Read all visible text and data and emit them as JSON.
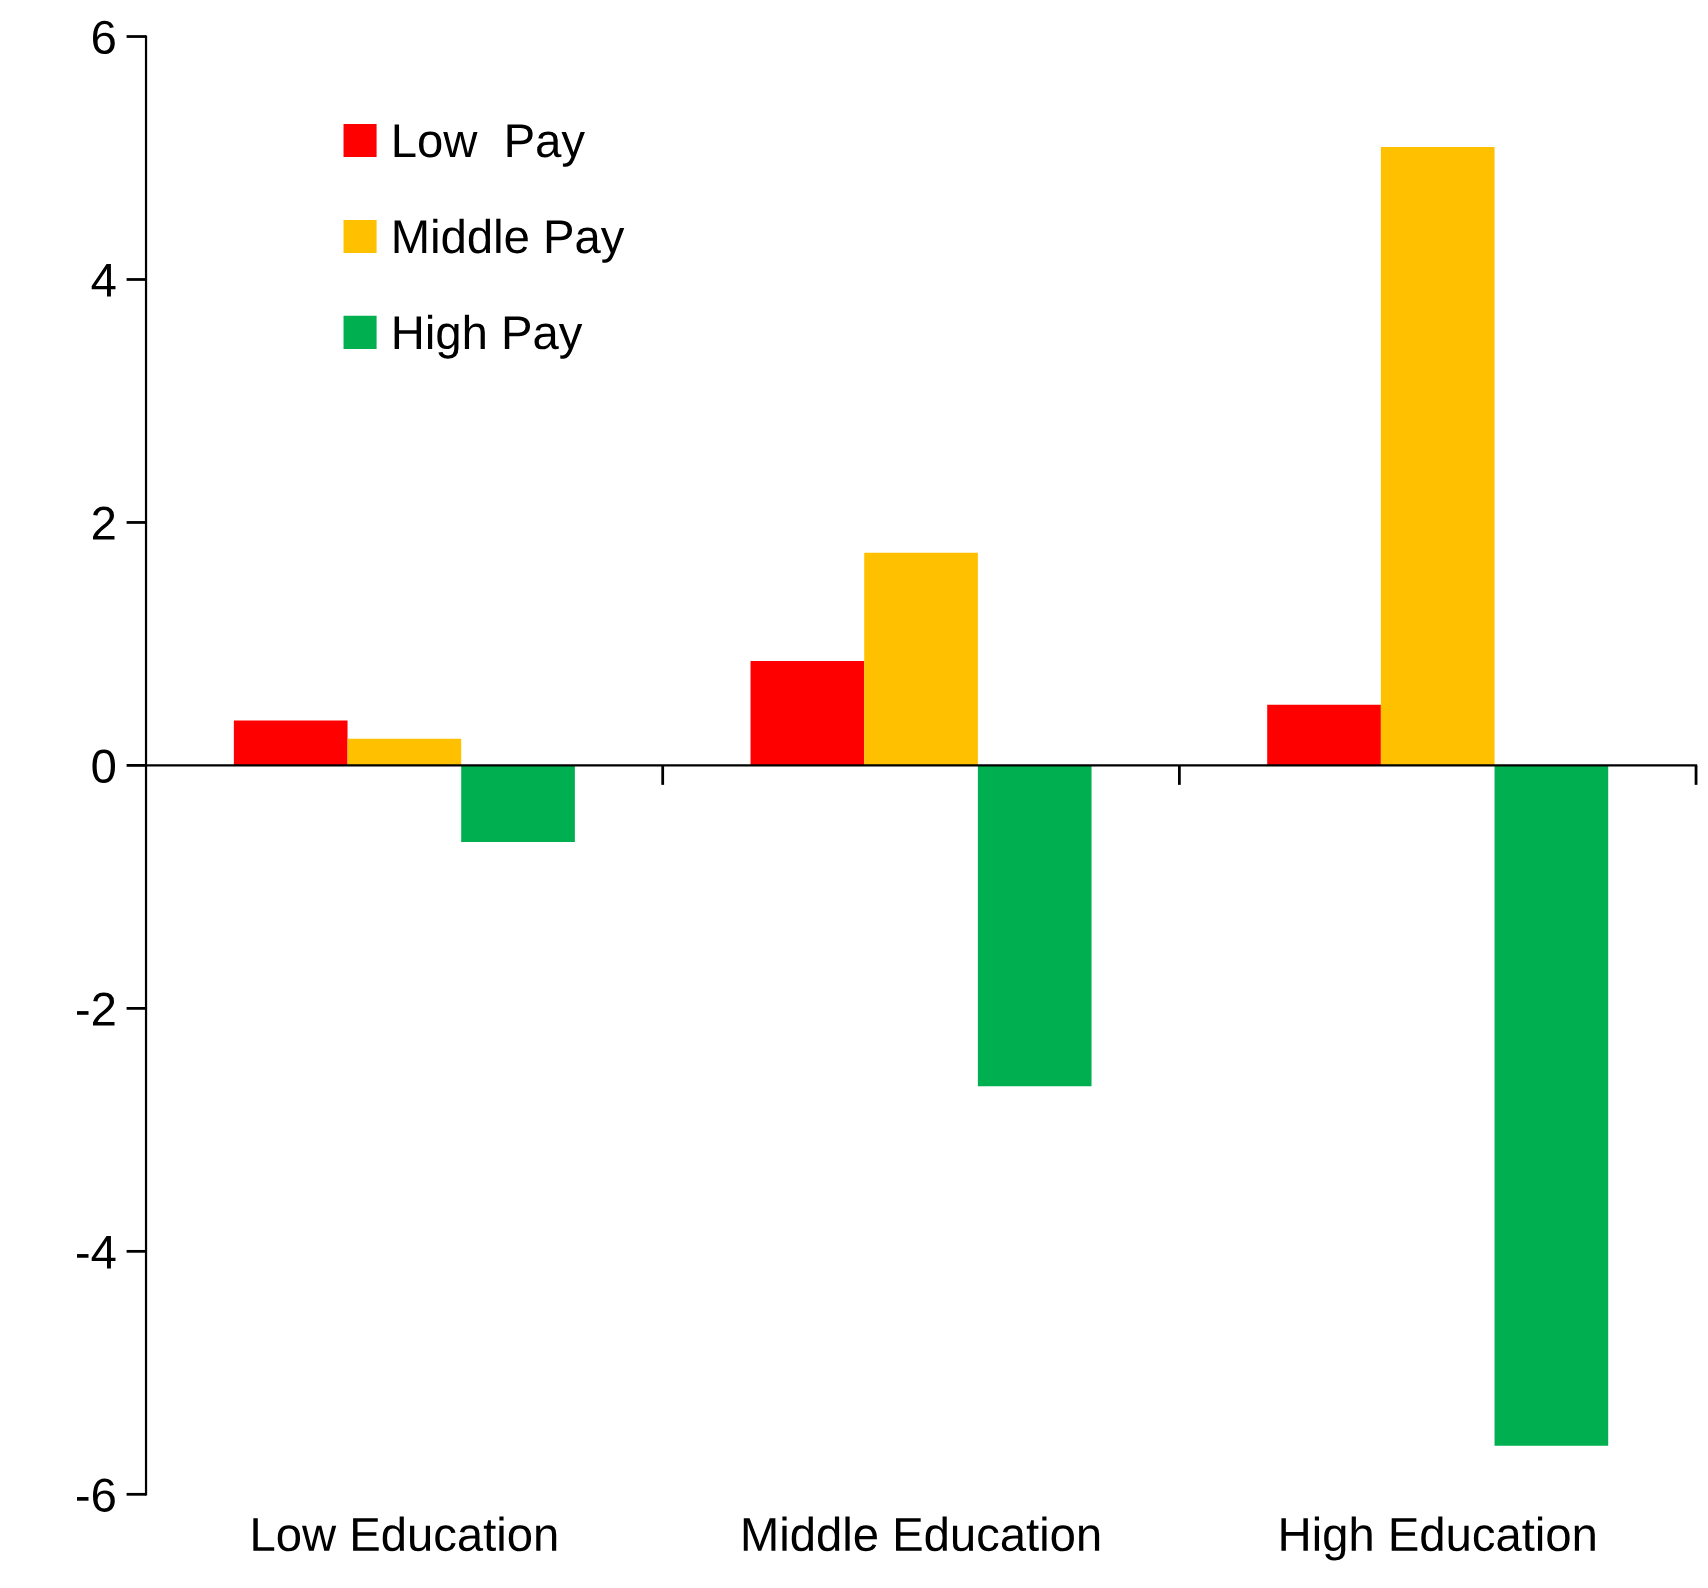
{
  "chart_data": {
    "type": "bar",
    "categories": [
      "Low Education",
      "Middle Education",
      "High Education"
    ],
    "series": [
      {
        "name": "Low  Pay",
        "color": "#ff0000",
        "values": [
          0.37,
          0.86,
          0.5
        ]
      },
      {
        "name": "Middle Pay",
        "color": "#ffc000",
        "values": [
          0.22,
          1.75,
          5.09
        ]
      },
      {
        "name": "High Pay",
        "color": "#00b050",
        "values": [
          -0.63,
          -2.64,
          -5.6
        ]
      }
    ],
    "ylim": [
      -6,
      6
    ],
    "yticks": [
      6,
      4,
      2,
      0,
      {
        "value": -2,
        "label": "-2"
      },
      {
        "value": -4,
        "label": "-4"
      },
      {
        "value": -6,
        "label": "-6"
      }
    ],
    "legend": "top left"
  }
}
